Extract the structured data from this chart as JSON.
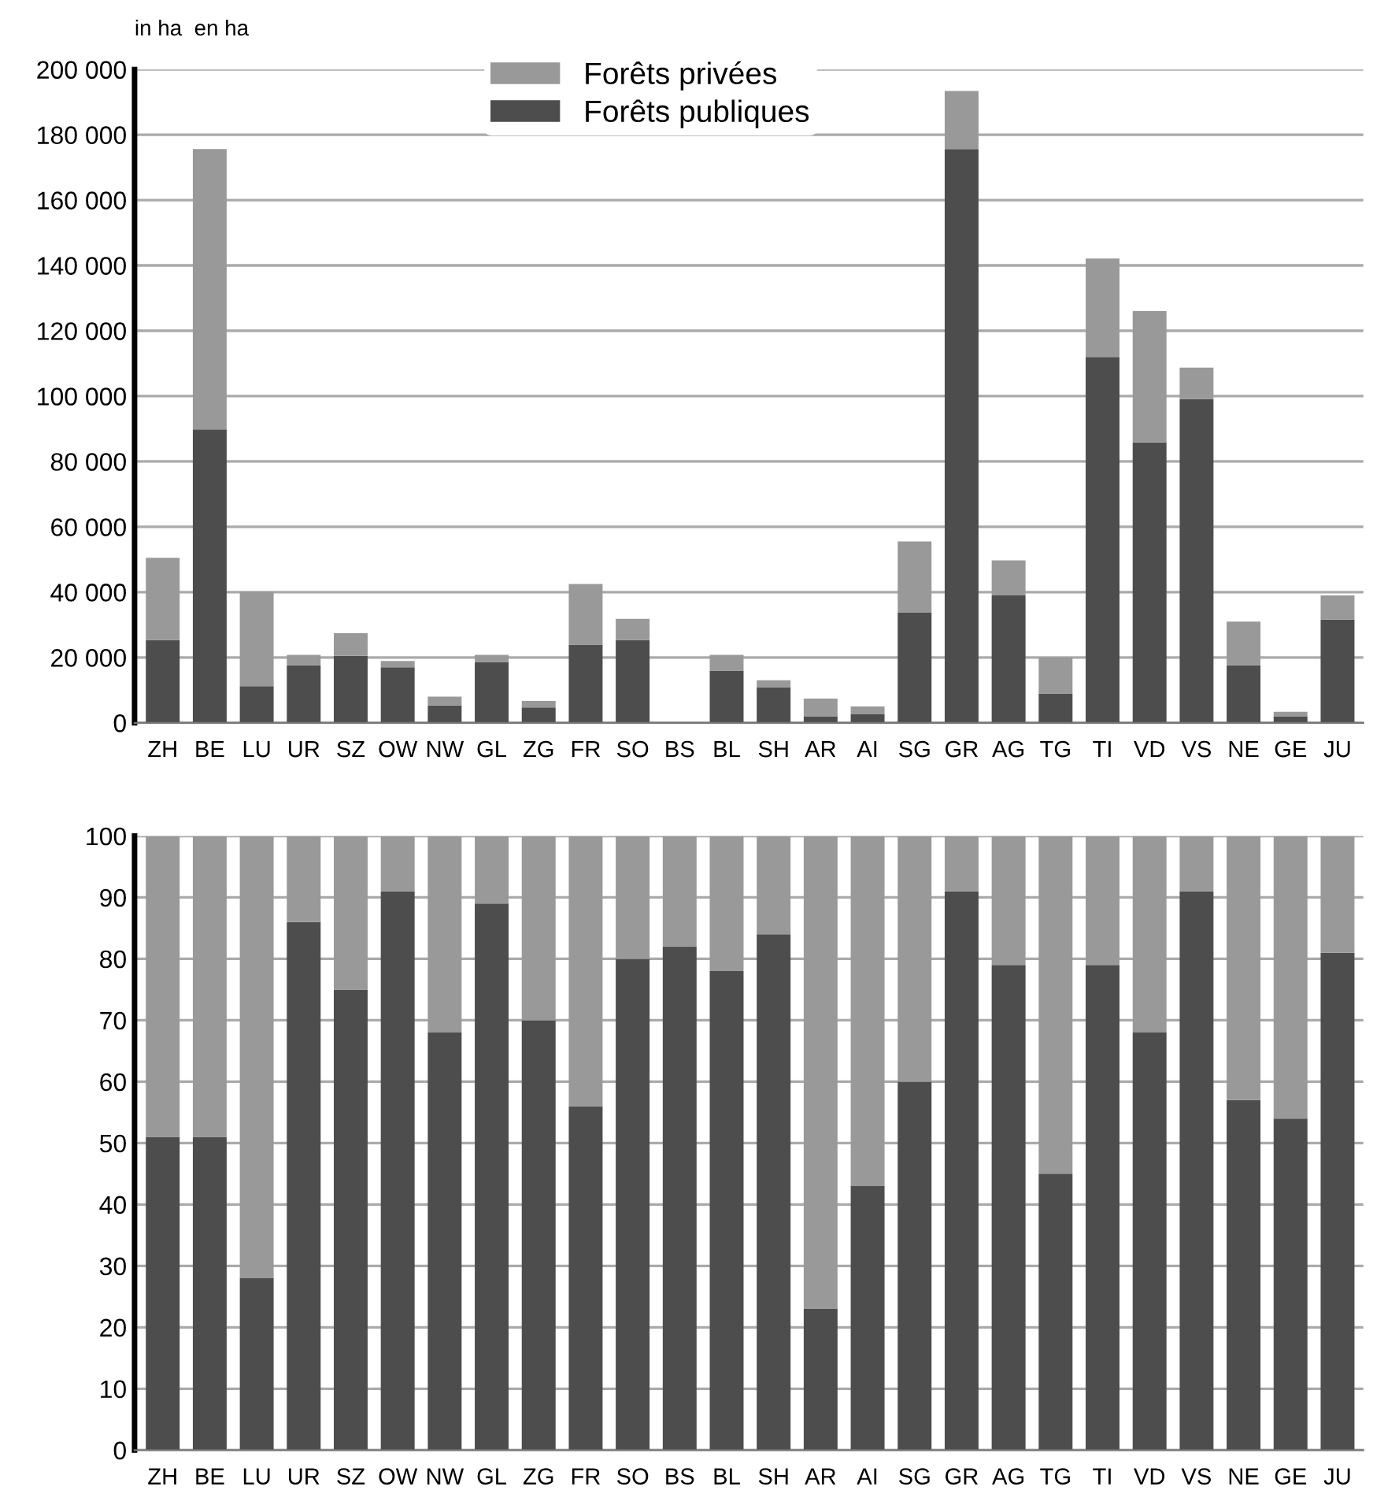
{
  "chart_data": [
    {
      "type": "bar",
      "stacked": true,
      "annotations": [
        "in ha  en ha"
      ],
      "legend": "top",
      "categories": [
        "ZH",
        "BE",
        "LU",
        "UR",
        "SZ",
        "OW",
        "NW",
        "GL",
        "ZG",
        "FR",
        "SO",
        "BS",
        "BL",
        "SH",
        "AR",
        "AI",
        "SG",
        "GR",
        "AG",
        "TG",
        "TI",
        "VD",
        "VS",
        "NE",
        "GE",
        "JU"
      ],
      "series": [
        {
          "name": "Forêts publiques",
          "color": "#4d4d4d",
          "values": [
            25300,
            89800,
            11200,
            17600,
            20500,
            17000,
            5300,
            18600,
            4700,
            23900,
            25300,
            null,
            16000,
            10900,
            1900,
            2600,
            33700,
            175600,
            39000,
            9000,
            112000,
            85800,
            99100,
            17600,
            1900,
            31600
          ]
        },
        {
          "name": "Forêts privées",
          "color": "#999999",
          "values": [
            25200,
            85800,
            28900,
            3200,
            6900,
            1900,
            2700,
            2200,
            2000,
            18600,
            6500,
            null,
            4800,
            2100,
            5500,
            2400,
            21800,
            17800,
            10700,
            11000,
            30100,
            40200,
            9600,
            13400,
            1500,
            7400
          ]
        }
      ],
      "ylim": [
        0,
        200000
      ],
      "yticks": [
        0,
        {
          "value": 20000,
          "label": "20 000"
        },
        {
          "value": 40000,
          "label": "40 000"
        },
        {
          "value": 60000,
          "label": "60 000"
        },
        {
          "value": 80000,
          "label": "80 000"
        },
        {
          "value": 100000,
          "label": "100 000"
        },
        {
          "value": 120000,
          "label": "120 000"
        },
        {
          "value": 140000,
          "label": "140 000"
        },
        {
          "value": 160000,
          "label": "160 000"
        },
        {
          "value": 180000,
          "label": "180 000"
        },
        {
          "value": 200000,
          "label": "200 000"
        }
      ],
      "grid": "y"
    },
    {
      "type": "bar",
      "stacked": true,
      "categories": [
        "ZH",
        "BE",
        "LU",
        "UR",
        "SZ",
        "OW",
        "NW",
        "GL",
        "ZG",
        "FR",
        "SO",
        "BS",
        "BL",
        "SH",
        "AR",
        "AI",
        "SG",
        "GR",
        "AG",
        "TG",
        "TI",
        "VD",
        "VS",
        "NE",
        "GE",
        "JU"
      ],
      "series": [
        {
          "color": "#4d4d4d",
          "values": [
            51,
            51,
            28,
            86,
            75,
            91,
            68,
            89,
            70,
            56,
            80,
            82,
            78,
            84,
            23,
            43,
            60,
            91,
            79,
            45,
            79,
            68,
            91,
            57,
            54,
            81
          ]
        },
        {
          "color": "#999999",
          "values": [
            49,
            49,
            72,
            14,
            25,
            9,
            32,
            11,
            30,
            44,
            20,
            18,
            22,
            16,
            77,
            57,
            40,
            9,
            21,
            55,
            21,
            32,
            9,
            43,
            46,
            19
          ]
        }
      ],
      "ylim": [
        0,
        100
      ],
      "yticks": [
        0,
        10,
        20,
        30,
        40,
        50,
        60,
        70,
        80,
        90,
        100
      ],
      "grid": "y"
    }
  ]
}
